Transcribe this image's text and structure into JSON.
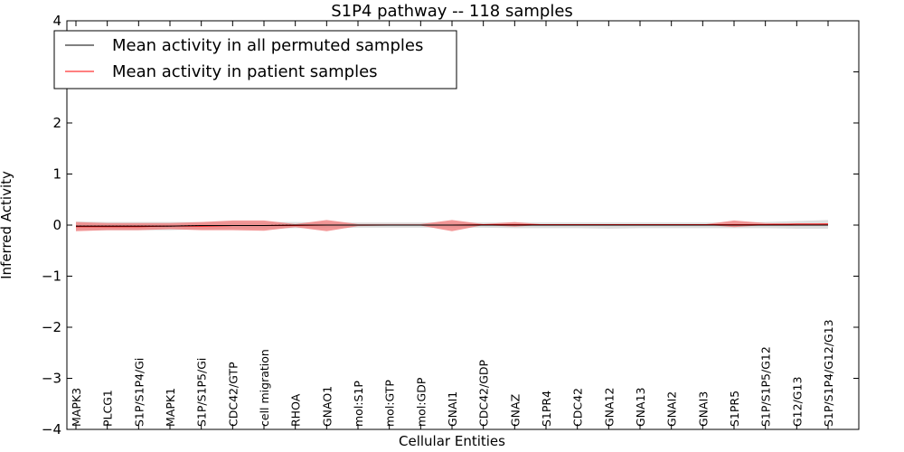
{
  "chart_data": {
    "type": "line",
    "title": "S1P4 pathway -- 118 samples",
    "xlabel": "Cellular Entities",
    "ylabel": "Inferred Activity",
    "ylim": [
      -4,
      4
    ],
    "yticks": [
      -4,
      -3,
      -2,
      -1,
      0,
      1,
      2,
      3,
      4
    ],
    "ytick_labels": [
      "−4",
      "−3",
      "−2",
      "−1",
      "0",
      "1",
      "2",
      "3",
      "4"
    ],
    "categories": [
      "MAPK3",
      "PLCG1",
      "S1P/S1P4/Gi",
      "MAPK1",
      "S1P/S1P5/Gi",
      "CDC42/GTP",
      "cell migration",
      "RHOA",
      "GNAO1",
      "mol:S1P",
      "mol:GTP",
      "mol:GDP",
      "GNAI1",
      "CDC42/GDP",
      "GNAZ",
      "S1PR4",
      "CDC42",
      "GNA12",
      "GNA13",
      "GNAI2",
      "GNAI3",
      "S1PR5",
      "S1P/S1P5/G12",
      "G12/G13",
      "S1P/S1P4/G12/G13"
    ],
    "legend": {
      "location": "upper-left",
      "entries": [
        {
          "label": "Mean activity in all permuted samples",
          "color": "#000000"
        },
        {
          "label": "Mean activity in patient samples",
          "color": "#ff0000"
        }
      ]
    },
    "series": [
      {
        "name": "Mean activity in all permuted samples",
        "color": "#000000",
        "style": "dotted",
        "values": [
          -0.02,
          -0.02,
          -0.02,
          -0.02,
          -0.01,
          -0.01,
          -0.01,
          0.0,
          0.0,
          0.0,
          0.0,
          0.0,
          0.0,
          0.0,
          0.0,
          0.0,
          0.0,
          0.0,
          0.0,
          0.0,
          0.0,
          0.0,
          0.0,
          0.0,
          0.0
        ],
        "band_lower": [
          -0.1,
          -0.1,
          -0.1,
          -0.1,
          -0.08,
          -0.07,
          -0.07,
          -0.06,
          -0.06,
          -0.05,
          -0.05,
          -0.05,
          -0.05,
          -0.05,
          -0.06,
          -0.06,
          -0.06,
          -0.07,
          -0.06,
          -0.06,
          -0.06,
          -0.06,
          -0.06,
          -0.07,
          -0.07
        ],
        "band_upper": [
          0.07,
          0.06,
          0.06,
          0.06,
          0.06,
          0.06,
          0.06,
          0.06,
          0.05,
          0.05,
          0.05,
          0.05,
          0.05,
          0.05,
          0.05,
          0.05,
          0.05,
          0.05,
          0.05,
          0.05,
          0.05,
          0.05,
          0.06,
          0.08,
          0.1
        ]
      },
      {
        "name": "Mean activity in patient samples",
        "color": "#ff0000",
        "fill_color": "#f08080",
        "style": "solid",
        "values": [
          -0.03,
          -0.03,
          -0.03,
          -0.02,
          -0.02,
          -0.01,
          -0.01,
          -0.01,
          0.0,
          0.0,
          0.0,
          0.0,
          0.0,
          0.01,
          0.01,
          0.01,
          0.01,
          0.01,
          0.01,
          0.01,
          0.01,
          0.01,
          0.01,
          0.02,
          0.02
        ],
        "band_lower": [
          -0.12,
          -0.1,
          -0.1,
          -0.08,
          -0.1,
          -0.1,
          -0.11,
          -0.04,
          -0.12,
          -0.02,
          -0.01,
          -0.01,
          -0.12,
          0.0,
          -0.03,
          0.01,
          0.01,
          0.01,
          0.01,
          0.01,
          0.01,
          -0.04,
          0.0,
          0.02,
          0.02
        ],
        "band_upper": [
          0.06,
          0.04,
          0.04,
          0.04,
          0.06,
          0.09,
          0.09,
          0.02,
          0.1,
          0.02,
          0.02,
          0.02,
          0.1,
          0.02,
          0.06,
          0.01,
          0.01,
          0.01,
          0.01,
          0.01,
          0.01,
          0.09,
          0.04,
          0.02,
          0.03
        ]
      }
    ]
  }
}
